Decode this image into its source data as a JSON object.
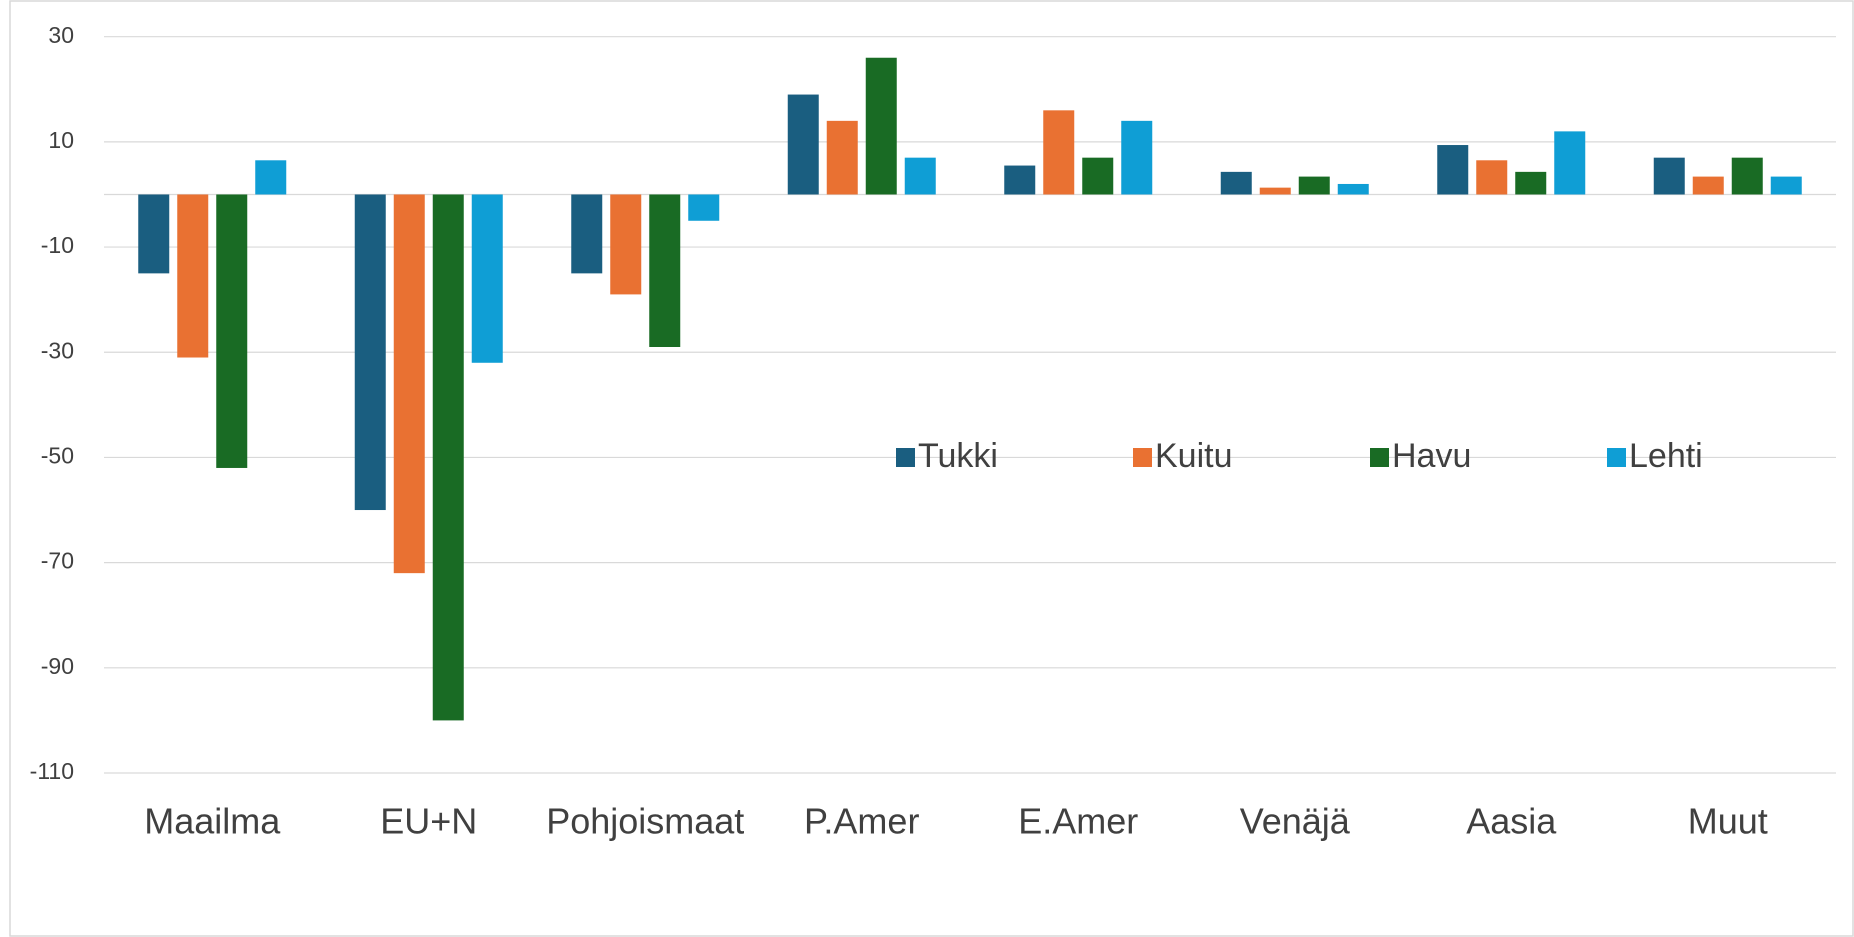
{
  "chart_data": {
    "type": "bar",
    "categories": [
      "Maailma",
      "EU+N",
      "Pohjoismaat",
      "P.Amer",
      "E.Amer",
      "Venäjä",
      "Aasia",
      "Muut"
    ],
    "series": [
      {
        "name": "Tukki",
        "color": "#1a5e80",
        "values": [
          -15,
          -60,
          -15,
          19,
          5.5,
          4.3,
          9.4,
          7
        ]
      },
      {
        "name": "Kuitu",
        "color": "#e97132",
        "values": [
          -31,
          -72,
          -19,
          14,
          16,
          1.3,
          6.5,
          3.4
        ]
      },
      {
        "name": "Havu",
        "color": "#196b24",
        "values": [
          -52,
          -100,
          -29,
          26,
          7,
          3.4,
          4.3,
          7
        ]
      },
      {
        "name": "Lehti",
        "color": "#0f9ed5",
        "values": [
          6.5,
          -32,
          -5,
          7,
          14,
          2,
          12,
          3.4
        ]
      }
    ],
    "ylim": [
      -110,
      30
    ],
    "yticks": [
      30,
      10,
      -10,
      -30,
      -50,
      -70,
      -90,
      -110
    ],
    "grid": true,
    "legend": "center"
  }
}
